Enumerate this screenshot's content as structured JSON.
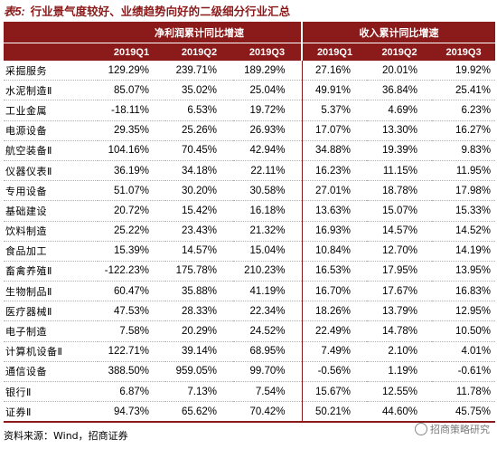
{
  "title": {
    "label": "表5:",
    "text": "行业景气度较好、业绩趋势向好的二级细分行业汇总"
  },
  "header": {
    "group1": "净利润累计同比增速",
    "group2": "收入累计同比增速",
    "quarters": [
      "2019Q1",
      "2019Q2",
      "2019Q3",
      "2019Q1",
      "2019Q2",
      "2019Q3"
    ]
  },
  "rows": [
    {
      "name": "采掘服务",
      "values": [
        "129.29%",
        "239.71%",
        "189.29%",
        "27.16%",
        "20.01%",
        "19.92%"
      ]
    },
    {
      "name": "水泥制造Ⅱ",
      "values": [
        "85.07%",
        "35.02%",
        "25.04%",
        "49.91%",
        "36.84%",
        "25.41%"
      ]
    },
    {
      "name": "工业金属",
      "values": [
        "-18.11%",
        "6.53%",
        "19.72%",
        "5.37%",
        "4.69%",
        "6.23%"
      ]
    },
    {
      "name": "电源设备",
      "values": [
        "29.35%",
        "25.26%",
        "26.93%",
        "17.07%",
        "13.30%",
        "16.27%"
      ]
    },
    {
      "name": "航空装备Ⅱ",
      "values": [
        "104.16%",
        "70.45%",
        "42.94%",
        "34.88%",
        "19.39%",
        "9.83%"
      ]
    },
    {
      "name": "仪器仪表Ⅱ",
      "values": [
        "36.19%",
        "34.18%",
        "22.11%",
        "16.23%",
        "11.15%",
        "11.95%"
      ]
    },
    {
      "name": "专用设备",
      "values": [
        "51.07%",
        "30.20%",
        "30.58%",
        "27.01%",
        "18.78%",
        "17.98%"
      ]
    },
    {
      "name": "基础建设",
      "values": [
        "20.72%",
        "15.42%",
        "16.18%",
        "13.63%",
        "15.07%",
        "15.33%"
      ]
    },
    {
      "name": "饮料制造",
      "values": [
        "25.22%",
        "23.43%",
        "21.32%",
        "16.93%",
        "14.57%",
        "14.52%"
      ]
    },
    {
      "name": "食品加工",
      "values": [
        "15.39%",
        "14.57%",
        "15.04%",
        "10.84%",
        "12.70%",
        "14.19%"
      ]
    },
    {
      "name": "畜禽养殖Ⅱ",
      "values": [
        "-122.23%",
        "175.78%",
        "210.23%",
        "16.53%",
        "17.95%",
        "13.95%"
      ]
    },
    {
      "name": "生物制品Ⅱ",
      "values": [
        "60.47%",
        "35.88%",
        "41.19%",
        "16.70%",
        "17.67%",
        "16.83%"
      ]
    },
    {
      "name": "医疗器械Ⅱ",
      "values": [
        "47.53%",
        "28.33%",
        "22.34%",
        "18.26%",
        "13.79%",
        "12.95%"
      ]
    },
    {
      "name": "电子制造",
      "values": [
        "7.58%",
        "20.29%",
        "24.52%",
        "22.49%",
        "14.78%",
        "10.50%"
      ]
    },
    {
      "name": "计算机设备Ⅱ",
      "values": [
        "122.71%",
        "39.14%",
        "68.95%",
        "7.49%",
        "2.10%",
        "4.01%"
      ]
    },
    {
      "name": "通信设备",
      "values": [
        "388.50%",
        "959.05%",
        "99.70%",
        "-0.56%",
        "1.19%",
        "-0.61%"
      ]
    },
    {
      "name": "银行Ⅱ",
      "values": [
        "6.87%",
        "7.13%",
        "7.54%",
        "15.67%",
        "12.55%",
        "11.78%"
      ]
    },
    {
      "name": "证券Ⅱ",
      "values": [
        "94.73%",
        "65.62%",
        "70.42%",
        "50.21%",
        "44.60%",
        "45.75%"
      ]
    }
  ],
  "source": "资料来源：Wind，招商证券",
  "watermark": "招商策略研究",
  "colors": {
    "accent": "#8b1a1a",
    "header_text": "#ffffff"
  }
}
